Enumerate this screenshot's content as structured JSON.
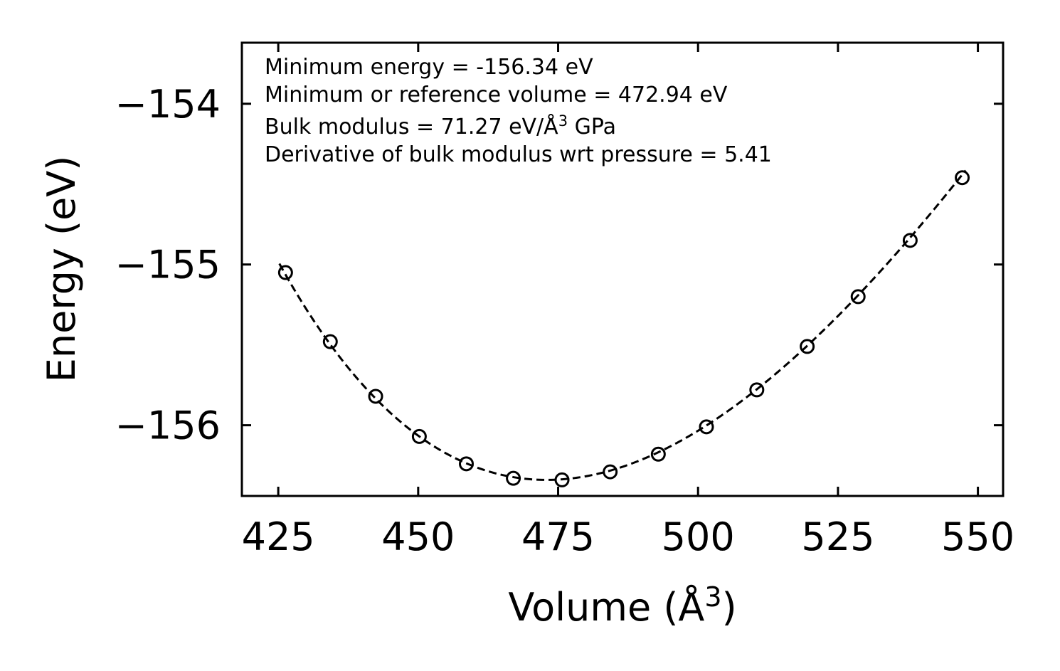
{
  "chart_data": {
    "type": "scatter",
    "title": "",
    "xlabel": "Volume (Å",
    "xlabel_sup": "3",
    "xlabel_close": ")",
    "ylabel": "Energy (eV)",
    "xlim": [
      418.5,
      554.5
    ],
    "ylim": [
      -156.44,
      -153.62
    ],
    "xticks": [
      425,
      450,
      475,
      500,
      525,
      550
    ],
    "xtick_labels": [
      "425",
      "450",
      "475",
      "500",
      "525",
      "550"
    ],
    "yticks": [
      -154,
      -155,
      -156
    ],
    "ytick_labels": [
      "−154",
      "−155",
      "−156"
    ],
    "grid": false,
    "series": [
      {
        "name": "data",
        "style": "open-circle",
        "x": [
          426.3,
          434.3,
          442.4,
          450.2,
          458.6,
          467.0,
          475.7,
          484.3,
          492.9,
          501.5,
          510.5,
          519.5,
          528.6,
          537.9,
          547.2
        ],
        "y": [
          -155.05,
          -155.48,
          -155.82,
          -156.07,
          -156.24,
          -156.33,
          -156.34,
          -156.29,
          -156.18,
          -156.01,
          -155.78,
          -155.51,
          -155.2,
          -154.85,
          -154.46
        ]
      },
      {
        "name": "fit",
        "style": "dashed-line",
        "E0": -156.34,
        "V0": 472.94,
        "B": 71.27,
        "Bp": 5.41,
        "x_range": [
          425.2,
          547.8
        ]
      }
    ],
    "annotations": {
      "line1": "Minimum energy = -156.34 eV",
      "line2": "Minimum or reference volume = 472.94 eV",
      "line3_pre": "Bulk modulus = 71.27 eV/Å",
      "line3_sup": "3",
      "line3_post": " GPa",
      "line4": "Derivative of bulk modulus wrt pressure = 5.41"
    }
  }
}
